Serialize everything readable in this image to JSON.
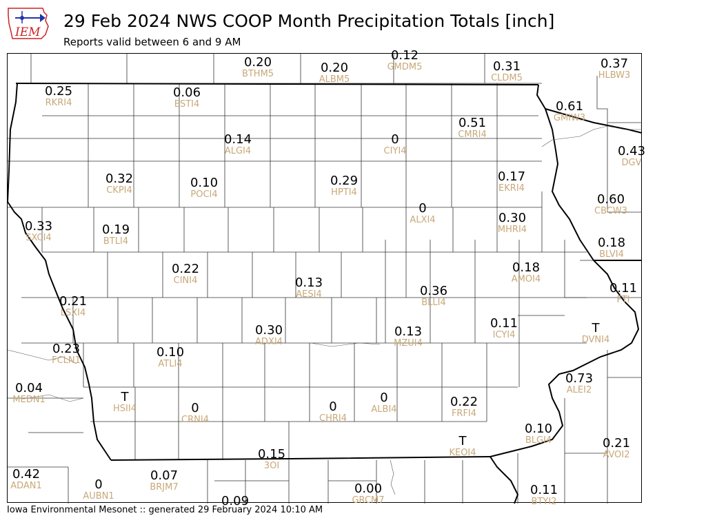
{
  "header": {
    "logo_text": "IEM",
    "title": "29 Feb 2024 NWS COOP Month Precipitation Totals [inch]",
    "subtitle": "Reports valid between 6 and 9 AM"
  },
  "footer": {
    "text": "Iowa Environmental Mesonet :: generated 29 February 2024 10:10 AM"
  },
  "colors": {
    "value": "#000000",
    "station_id": "#c8a878",
    "borders": "#000000"
  },
  "stations": [
    {
      "value": "0.20",
      "id": "BTHM5"
    },
    {
      "value": "0.20",
      "id": "ALBM5"
    },
    {
      "value": "0.12",
      "id": "GMDM5"
    },
    {
      "value": "0.31",
      "id": "CLDM5"
    },
    {
      "value": "0.37",
      "id": "HLBW3"
    },
    {
      "value": "0.25",
      "id": "RKRI4"
    },
    {
      "value": "0.06",
      "id": "ESTI4"
    },
    {
      "value": "0.61",
      "id": "GMIW3"
    },
    {
      "value": "0.51",
      "id": "CMRI4"
    },
    {
      "value": "0",
      "id": "CIYI4"
    },
    {
      "value": "0.14",
      "id": "ALGI4"
    },
    {
      "value": "0.43",
      "id": "DGV"
    },
    {
      "value": "0.32",
      "id": "CKPI4"
    },
    {
      "value": "0.10",
      "id": "POCI4"
    },
    {
      "value": "0.29",
      "id": "HPTI4"
    },
    {
      "value": "0.17",
      "id": "EKRI4"
    },
    {
      "value": "0.60",
      "id": "CBCW3"
    },
    {
      "value": "0",
      "id": "ALXI4"
    },
    {
      "value": "0.30",
      "id": "MHRI4"
    },
    {
      "value": "0.33",
      "id": "SXCI4"
    },
    {
      "value": "0.19",
      "id": "BTLI4"
    },
    {
      "value": "0.18",
      "id": "BLVI4"
    },
    {
      "value": "0.22",
      "id": "CINI4"
    },
    {
      "value": "0.18",
      "id": "AMOI4"
    },
    {
      "value": "0.13",
      "id": "AESI4"
    },
    {
      "value": "0.36",
      "id": "BLLI4"
    },
    {
      "value": "0.11",
      "id": "FTI"
    },
    {
      "value": "0.21",
      "id": "LSXI4"
    },
    {
      "value": "0.11",
      "id": "ICYI4"
    },
    {
      "value": "T",
      "id": "DVNI4"
    },
    {
      "value": "0.30",
      "id": "ADXI4"
    },
    {
      "value": "0.13",
      "id": "MZUI4"
    },
    {
      "value": "0.23",
      "id": "FCLN1"
    },
    {
      "value": "0.10",
      "id": "ATLI4"
    },
    {
      "value": "0.73",
      "id": "ALEI2"
    },
    {
      "value": "0.04",
      "id": "MEDN1"
    },
    {
      "value": "T",
      "id": "HSII4"
    },
    {
      "value": "0",
      "id": "CRNI4"
    },
    {
      "value": "0",
      "id": "CHRI4"
    },
    {
      "value": "0",
      "id": "ALBI4"
    },
    {
      "value": "0.22",
      "id": "FRFI4"
    },
    {
      "value": "T",
      "id": "KEOI4"
    },
    {
      "value": "0.10",
      "id": "BLGI4"
    },
    {
      "value": "0.21",
      "id": "AVOI2"
    },
    {
      "value": "0.15",
      "id": "3OI"
    },
    {
      "value": "0.42",
      "id": "ADAN1"
    },
    {
      "value": "0",
      "id": "AUBN1"
    },
    {
      "value": "0.07",
      "id": "BRJM7"
    },
    {
      "value": "0.09",
      "id": ""
    },
    {
      "value": "0.00",
      "id": "GRCM7"
    },
    {
      "value": "0.11",
      "id": "BTYI2"
    }
  ]
}
